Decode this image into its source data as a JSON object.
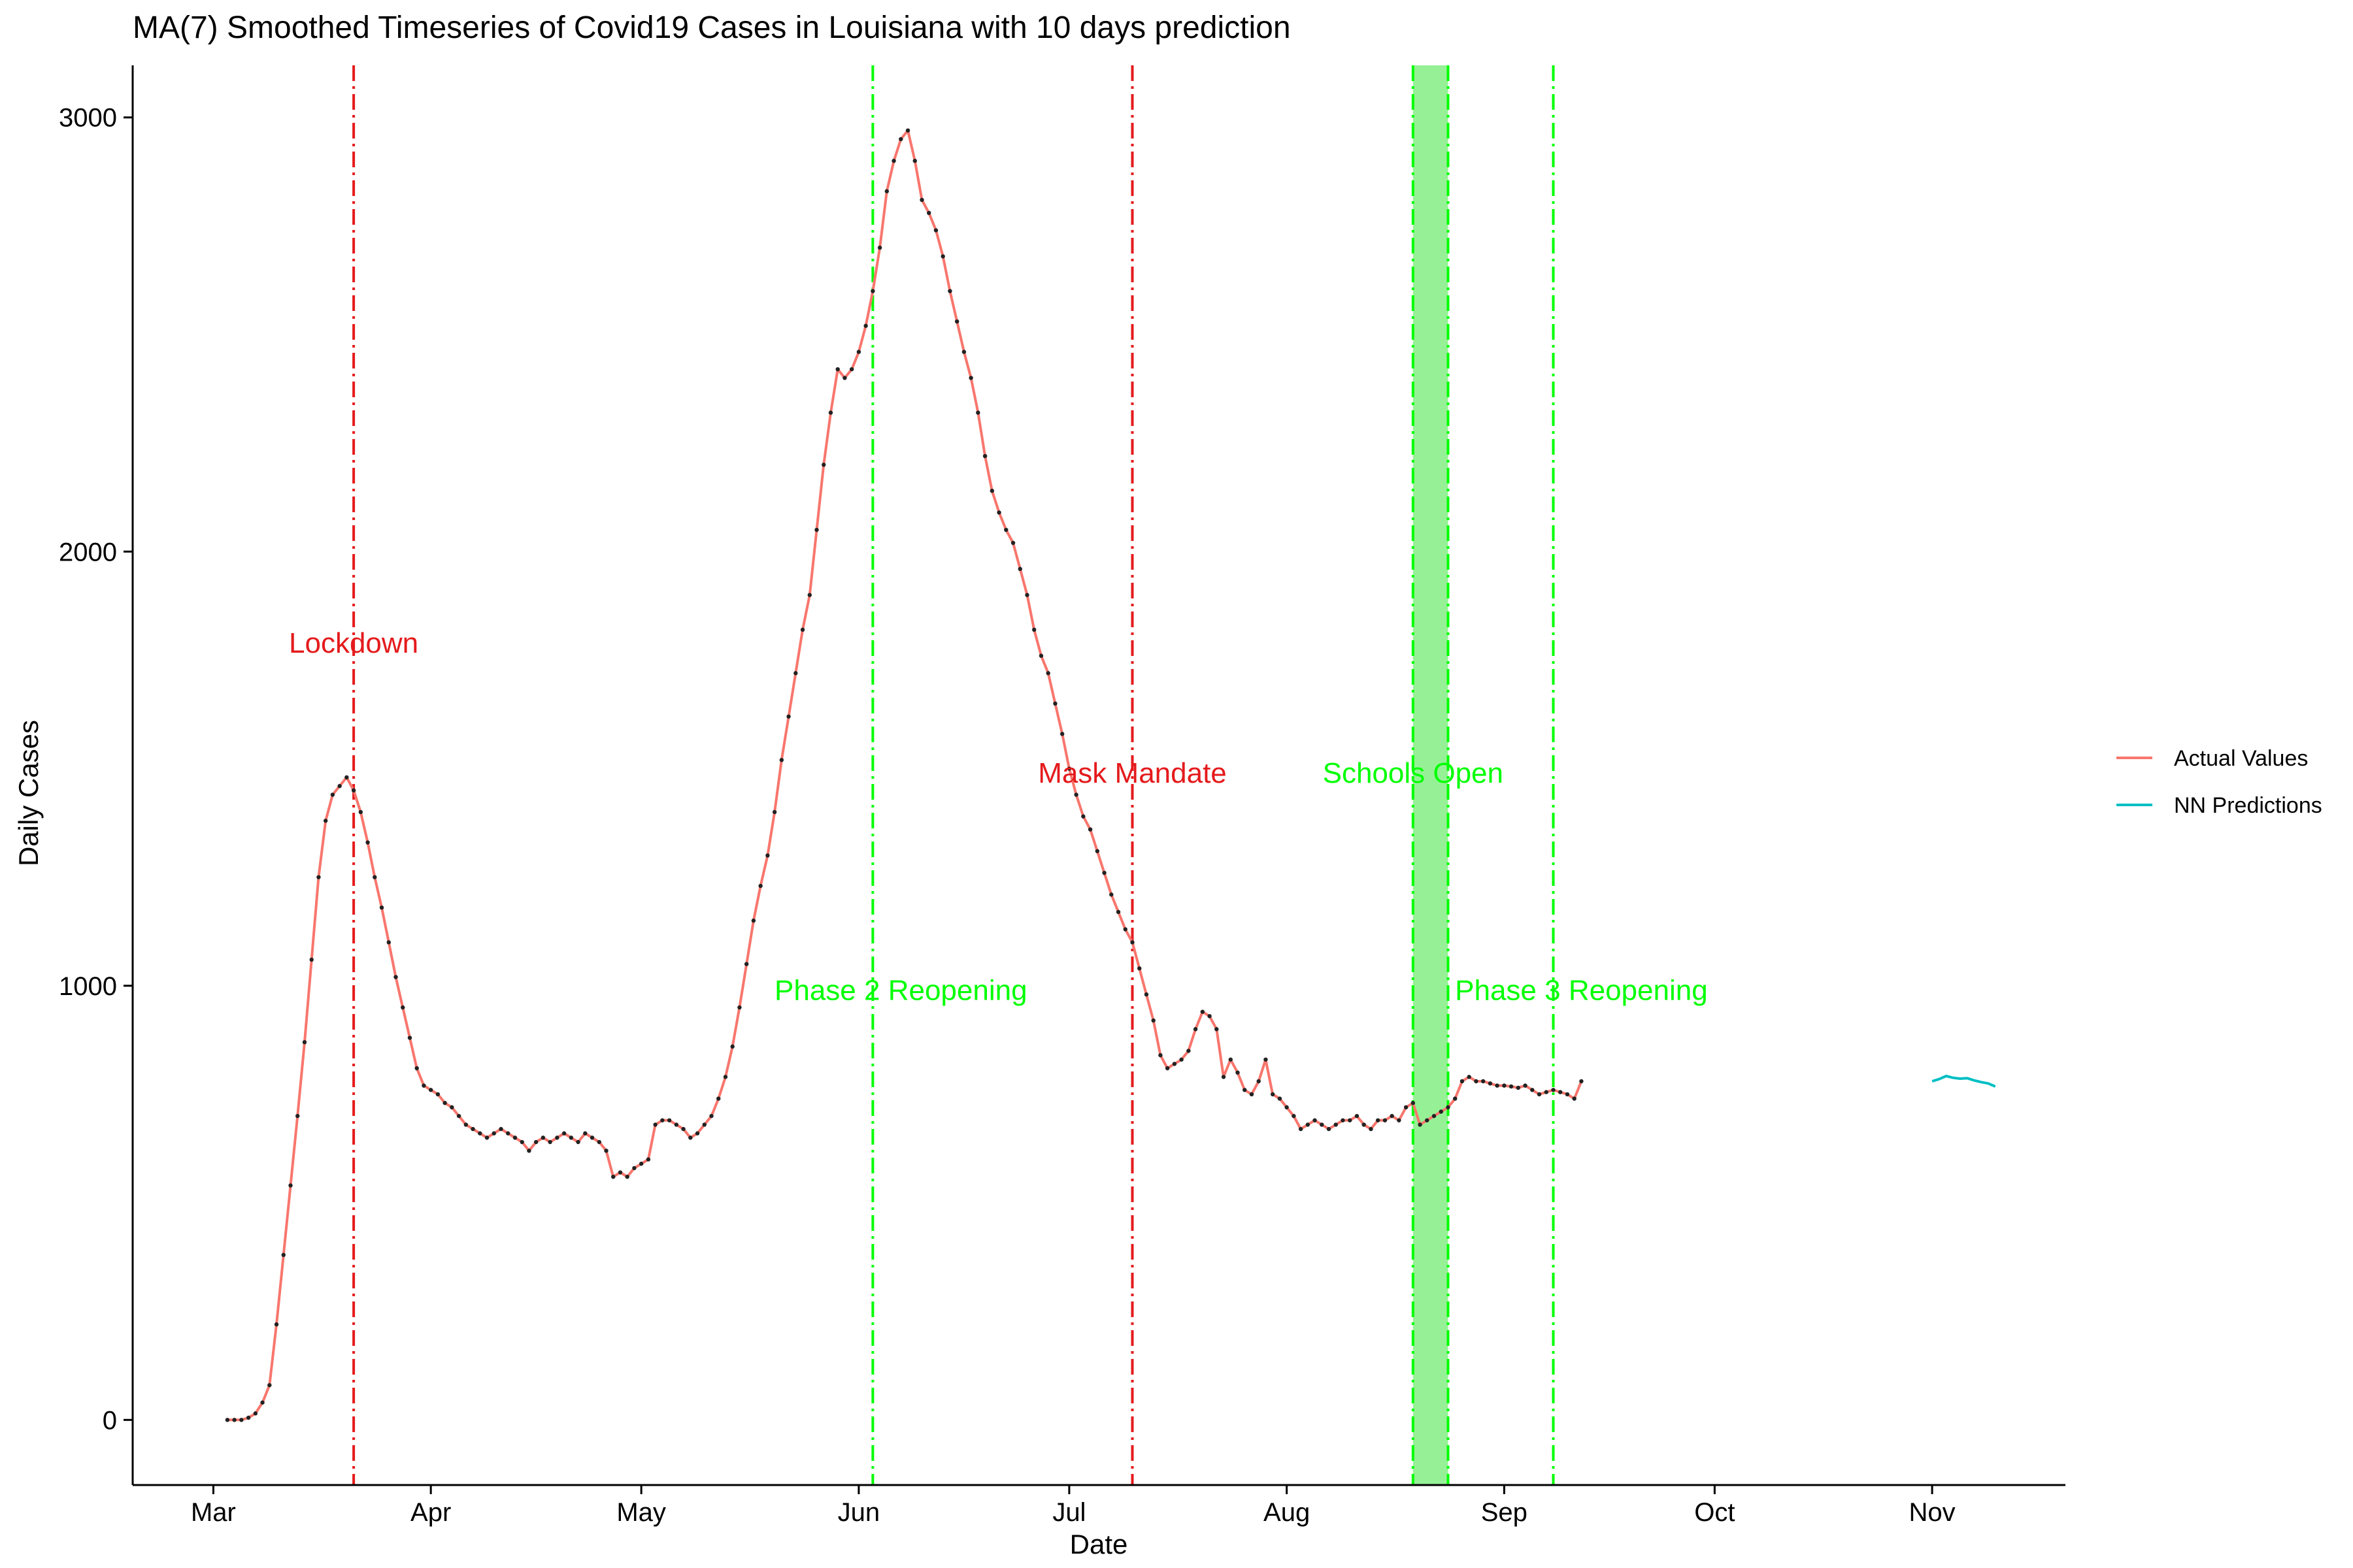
{
  "chart_data": {
    "type": "line",
    "title": "MA(7) Smoothed Timeseries of Covid19 Cases in Louisiana with 10 days prediction",
    "xlabel": "Date",
    "ylabel": "Daily Cases",
    "x_range_days": [
      -11.5,
      264
    ],
    "ylim": [
      -150,
      3120
    ],
    "x_date_origin": "Mar 1",
    "x_ticks": [
      {
        "day": 0,
        "label": "Mar"
      },
      {
        "day": 31,
        "label": "Apr"
      },
      {
        "day": 61,
        "label": "May"
      },
      {
        "day": 92,
        "label": "Jun"
      },
      {
        "day": 122,
        "label": "Jul"
      },
      {
        "day": 153,
        "label": "Aug"
      },
      {
        "day": 184,
        "label": "Sep"
      },
      {
        "day": 214,
        "label": "Oct"
      },
      {
        "day": 245,
        "label": "Nov"
      }
    ],
    "y_ticks": [
      0,
      1000,
      2000,
      3000
    ],
    "series": [
      {
        "name": "Actual Values",
        "color": "#F8766D",
        "points": [
          [
            2,
            0
          ],
          [
            3,
            0
          ],
          [
            4,
            0
          ],
          [
            5,
            5
          ],
          [
            6,
            15
          ],
          [
            7,
            40
          ],
          [
            8,
            80
          ],
          [
            9,
            220
          ],
          [
            10,
            380
          ],
          [
            11,
            540
          ],
          [
            12,
            700
          ],
          [
            13,
            870
          ],
          [
            14,
            1060
          ],
          [
            15,
            1250
          ],
          [
            16,
            1380
          ],
          [
            17,
            1440
          ],
          [
            18,
            1460
          ],
          [
            19,
            1480
          ],
          [
            20,
            1450
          ],
          [
            21,
            1400
          ],
          [
            22,
            1330
          ],
          [
            23,
            1250
          ],
          [
            24,
            1180
          ],
          [
            25,
            1100
          ],
          [
            26,
            1020
          ],
          [
            27,
            950
          ],
          [
            28,
            880
          ],
          [
            29,
            810
          ],
          [
            30,
            770
          ],
          [
            31,
            760
          ],
          [
            32,
            750
          ],
          [
            33,
            730
          ],
          [
            34,
            720
          ],
          [
            35,
            700
          ],
          [
            36,
            680
          ],
          [
            37,
            670
          ],
          [
            38,
            660
          ],
          [
            39,
            650
          ],
          [
            40,
            660
          ],
          [
            41,
            670
          ],
          [
            42,
            660
          ],
          [
            43,
            650
          ],
          [
            44,
            640
          ],
          [
            45,
            620
          ],
          [
            46,
            640
          ],
          [
            47,
            650
          ],
          [
            48,
            640
          ],
          [
            49,
            650
          ],
          [
            50,
            660
          ],
          [
            51,
            650
          ],
          [
            52,
            640
          ],
          [
            53,
            660
          ],
          [
            54,
            650
          ],
          [
            55,
            640
          ],
          [
            56,
            620
          ],
          [
            57,
            560
          ],
          [
            58,
            570
          ],
          [
            59,
            560
          ],
          [
            60,
            580
          ],
          [
            61,
            590
          ],
          [
            62,
            600
          ],
          [
            63,
            680
          ],
          [
            64,
            690
          ],
          [
            65,
            690
          ],
          [
            66,
            680
          ],
          [
            67,
            670
          ],
          [
            68,
            650
          ],
          [
            69,
            660
          ],
          [
            70,
            680
          ],
          [
            71,
            700
          ],
          [
            72,
            740
          ],
          [
            73,
            790
          ],
          [
            74,
            860
          ],
          [
            75,
            950
          ],
          [
            76,
            1050
          ],
          [
            77,
            1150
          ],
          [
            78,
            1230
          ],
          [
            79,
            1300
          ],
          [
            80,
            1400
          ],
          [
            81,
            1520
          ],
          [
            82,
            1620
          ],
          [
            83,
            1720
          ],
          [
            84,
            1820
          ],
          [
            85,
            1900
          ],
          [
            86,
            2050
          ],
          [
            87,
            2200
          ],
          [
            88,
            2320
          ],
          [
            89,
            2420
          ],
          [
            90,
            2400
          ],
          [
            91,
            2420
          ],
          [
            92,
            2460
          ],
          [
            93,
            2520
          ],
          [
            94,
            2600
          ],
          [
            95,
            2700
          ],
          [
            96,
            2830
          ],
          [
            97,
            2900
          ],
          [
            98,
            2950
          ],
          [
            99,
            2970
          ],
          [
            100,
            2900
          ],
          [
            101,
            2810
          ],
          [
            102,
            2780
          ],
          [
            103,
            2740
          ],
          [
            104,
            2680
          ],
          [
            105,
            2600
          ],
          [
            106,
            2530
          ],
          [
            107,
            2460
          ],
          [
            108,
            2400
          ],
          [
            109,
            2320
          ],
          [
            110,
            2220
          ],
          [
            111,
            2140
          ],
          [
            112,
            2090
          ],
          [
            113,
            2050
          ],
          [
            114,
            2020
          ],
          [
            115,
            1960
          ],
          [
            116,
            1900
          ],
          [
            117,
            1820
          ],
          [
            118,
            1760
          ],
          [
            119,
            1720
          ],
          [
            120,
            1650
          ],
          [
            121,
            1580
          ],
          [
            122,
            1500
          ],
          [
            123,
            1440
          ],
          [
            124,
            1390
          ],
          [
            125,
            1360
          ],
          [
            126,
            1310
          ],
          [
            127,
            1260
          ],
          [
            128,
            1210
          ],
          [
            129,
            1170
          ],
          [
            130,
            1130
          ],
          [
            131,
            1100
          ],
          [
            132,
            1040
          ],
          [
            133,
            980
          ],
          [
            134,
            920
          ],
          [
            135,
            840
          ],
          [
            136,
            810
          ],
          [
            137,
            820
          ],
          [
            138,
            830
          ],
          [
            139,
            850
          ],
          [
            140,
            900
          ],
          [
            141,
            940
          ],
          [
            142,
            930
          ],
          [
            143,
            900
          ],
          [
            144,
            790
          ],
          [
            145,
            830
          ],
          [
            146,
            800
          ],
          [
            147,
            760
          ],
          [
            148,
            750
          ],
          [
            149,
            780
          ],
          [
            150,
            830
          ],
          [
            151,
            750
          ],
          [
            152,
            740
          ],
          [
            153,
            720
          ],
          [
            154,
            700
          ],
          [
            155,
            670
          ],
          [
            156,
            680
          ],
          [
            157,
            690
          ],
          [
            158,
            680
          ],
          [
            159,
            670
          ],
          [
            160,
            680
          ],
          [
            161,
            690
          ],
          [
            162,
            690
          ],
          [
            163,
            700
          ],
          [
            164,
            680
          ],
          [
            165,
            670
          ],
          [
            166,
            690
          ],
          [
            167,
            690
          ],
          [
            168,
            700
          ],
          [
            169,
            690
          ],
          [
            170,
            720
          ],
          [
            171,
            730
          ],
          [
            172,
            680
          ],
          [
            173,
            690
          ],
          [
            174,
            700
          ],
          [
            175,
            710
          ],
          [
            176,
            720
          ],
          [
            177,
            740
          ],
          [
            178,
            780
          ],
          [
            179,
            790
          ],
          [
            180,
            780
          ],
          [
            181,
            780
          ],
          [
            182,
            775
          ],
          [
            183,
            770
          ],
          [
            184,
            770
          ],
          [
            185,
            768
          ],
          [
            186,
            765
          ],
          [
            187,
            770
          ],
          [
            188,
            760
          ],
          [
            189,
            750
          ],
          [
            190,
            755
          ],
          [
            191,
            760
          ],
          [
            192,
            755
          ],
          [
            193,
            750
          ],
          [
            194,
            740
          ],
          [
            195,
            780
          ]
        ]
      },
      {
        "name": "NN Predictions",
        "color": "#00BFC4",
        "points": [
          [
            245,
            780
          ],
          [
            246,
            785
          ],
          [
            247,
            792
          ],
          [
            248,
            788
          ],
          [
            249,
            786
          ],
          [
            250,
            787
          ],
          [
            251,
            782
          ],
          [
            252,
            778
          ],
          [
            253,
            775
          ],
          [
            254,
            768
          ]
        ]
      }
    ],
    "vertical_lines": [
      {
        "day": 20,
        "color": "#E41A1C"
      },
      {
        "day": 94,
        "color": "#00FF00"
      },
      {
        "day": 131,
        "color": "#E41A1C"
      },
      {
        "day": 171,
        "color": "#00FF00"
      },
      {
        "day": 176,
        "color": "#00FF00"
      },
      {
        "day": 191,
        "color": "#00FF00"
      }
    ],
    "shaded_band": {
      "from_day": 171,
      "to_day": 176,
      "color": "#90F090"
    },
    "annotations": [
      {
        "text": "Lockdown",
        "day": 20,
        "y": 1790,
        "color": "#E41A1C"
      },
      {
        "text": "Phase 2 Reopening",
        "day": 98,
        "y": 990,
        "color": "#00FF00"
      },
      {
        "text": "Mask Mandate",
        "day": 131,
        "y": 1490,
        "color": "#E41A1C"
      },
      {
        "text": "Schools Open",
        "day": 171,
        "y": 1490,
        "color": "#00FF00"
      },
      {
        "text": "Phase 3 Reopening",
        "day": 195,
        "y": 990,
        "color": "#00FF00"
      }
    ],
    "legend_position": "right"
  }
}
